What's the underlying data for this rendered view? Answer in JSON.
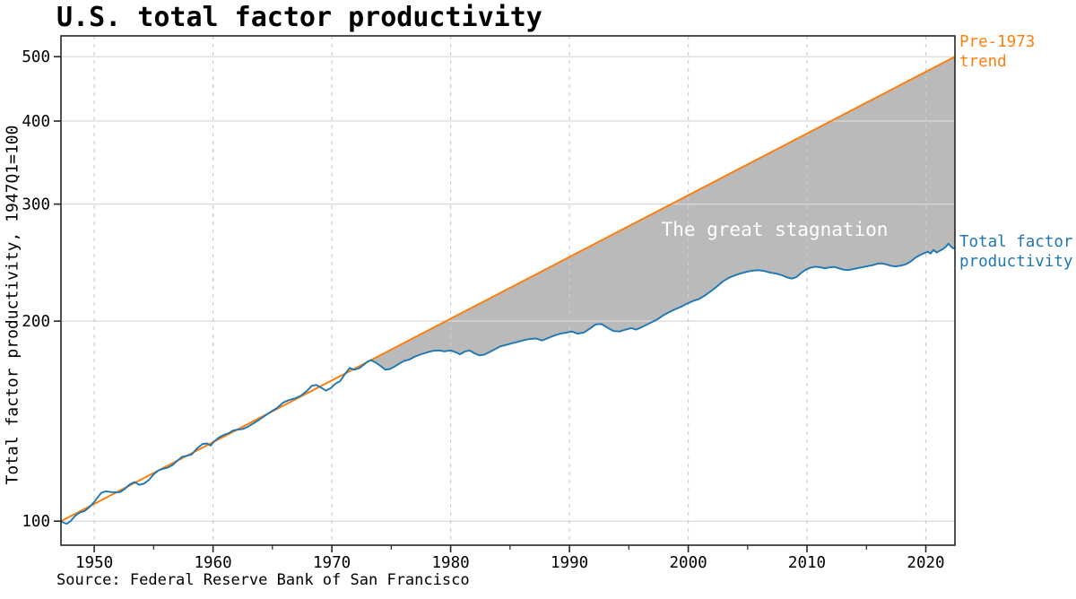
{
  "title": "U.S. total factor productivity",
  "y_axis_label": "Total factor productivity, 1947Q1=100",
  "source_note": "Source: Federal Reserve Bank of San Francisco",
  "annotations": {
    "trend_label_line1": "Pre-1973",
    "trend_label_line2": "trend",
    "tfp_label_line1": "Total factor",
    "tfp_label_line2": "productivity",
    "gap_label": "The great stagnation"
  },
  "colors": {
    "trend": "#ff7f0e",
    "tfp": "#1f77b4",
    "gap_fill": "#bababa",
    "gap_text": "#ffffff",
    "grid_h": "#d9d9d9",
    "grid_v": "#cccccc",
    "axis": "#262626",
    "text": "#000000"
  },
  "chart_data": {
    "type": "line",
    "title": "U.S. total factor productivity",
    "xlabel": "",
    "ylabel": "Total factor productivity, 1947Q1=100",
    "y_scale": "log",
    "grid": true,
    "legend_position": "annotated-right",
    "xlim": [
      1947.2,
      2022.45
    ],
    "ylim": [
      92,
      537.4
    ],
    "x_ticks": [
      1950,
      1960,
      1970,
      1980,
      1990,
      2000,
      2010,
      2020
    ],
    "x_minor_ticks": [
      1955,
      1965,
      1975,
      1985,
      1995,
      2005,
      2015
    ],
    "y_ticks": [
      100,
      200,
      300,
      400,
      500
    ],
    "series": [
      {
        "name": "Pre-1973 trend",
        "color": "#ff7f0e",
        "points": [
          [
            1947.2,
            100
          ],
          [
            2022.45,
            500
          ]
        ]
      },
      {
        "name": "Total factor productivity",
        "color": "#1f77b4",
        "points": [
          [
            1947.2,
            100.0
          ],
          [
            1947.45,
            99.4
          ],
          [
            1947.7,
            99.1
          ],
          [
            1948.0,
            100.0
          ],
          [
            1948.4,
            101.9
          ],
          [
            1948.8,
            103.1
          ],
          [
            1949.2,
            103.6
          ],
          [
            1949.6,
            105.0
          ],
          [
            1950.0,
            106.9
          ],
          [
            1950.3,
            108.6
          ],
          [
            1950.6,
            110.3
          ],
          [
            1951.0,
            110.9
          ],
          [
            1951.4,
            110.6
          ],
          [
            1951.8,
            110.5
          ],
          [
            1952.2,
            110.6
          ],
          [
            1952.6,
            111.9
          ],
          [
            1953.0,
            113.6
          ],
          [
            1953.4,
            114.5
          ],
          [
            1953.8,
            113.4
          ],
          [
            1954.2,
            113.9
          ],
          [
            1954.6,
            115.3
          ],
          [
            1955.0,
            117.6
          ],
          [
            1955.4,
            119.2
          ],
          [
            1955.8,
            119.9
          ],
          [
            1956.2,
            120.4
          ],
          [
            1956.6,
            121.5
          ],
          [
            1957.0,
            123.3
          ],
          [
            1957.4,
            125.0
          ],
          [
            1957.8,
            125.4
          ],
          [
            1958.2,
            126.0
          ],
          [
            1958.7,
            128.9
          ],
          [
            1959.1,
            130.6
          ],
          [
            1959.5,
            130.9
          ],
          [
            1959.8,
            129.9
          ],
          [
            1960.1,
            131.8
          ],
          [
            1960.5,
            133.6
          ],
          [
            1960.9,
            134.8
          ],
          [
            1961.3,
            135.6
          ],
          [
            1961.7,
            136.9
          ],
          [
            1962.1,
            137.3
          ],
          [
            1962.5,
            137.6
          ],
          [
            1962.9,
            138.6
          ],
          [
            1963.4,
            140.3
          ],
          [
            1963.9,
            142.2
          ],
          [
            1964.4,
            144.2
          ],
          [
            1964.9,
            146.2
          ],
          [
            1965.4,
            148.1
          ],
          [
            1965.9,
            150.8
          ],
          [
            1966.4,
            152.2
          ],
          [
            1966.9,
            153.0
          ],
          [
            1967.4,
            154.5
          ],
          [
            1967.9,
            157.0
          ],
          [
            1968.3,
            159.8
          ],
          [
            1968.7,
            160.3
          ],
          [
            1969.1,
            158.8
          ],
          [
            1969.5,
            157.2
          ],
          [
            1969.9,
            158.5
          ],
          [
            1970.3,
            161.0
          ],
          [
            1970.7,
            162.5
          ],
          [
            1971.1,
            166.5
          ],
          [
            1971.5,
            170.0
          ],
          [
            1971.9,
            169.0
          ],
          [
            1972.3,
            169.9
          ],
          [
            1972.7,
            172.0
          ],
          [
            1973.0,
            173.8
          ],
          [
            1973.3,
            174.7
          ],
          [
            1973.7,
            173.2
          ],
          [
            1974.1,
            171.2
          ],
          [
            1974.5,
            169.0
          ],
          [
            1974.9,
            169.4
          ],
          [
            1975.3,
            170.9
          ],
          [
            1975.7,
            172.7
          ],
          [
            1976.1,
            174.3
          ],
          [
            1976.5,
            175.0
          ],
          [
            1977.0,
            176.9
          ],
          [
            1977.5,
            178.3
          ],
          [
            1978.0,
            179.4
          ],
          [
            1978.5,
            180.4
          ],
          [
            1979.0,
            180.7
          ],
          [
            1979.5,
            180.1
          ],
          [
            1980.0,
            180.7
          ],
          [
            1980.4,
            179.6
          ],
          [
            1980.8,
            178.3
          ],
          [
            1981.2,
            180.0
          ],
          [
            1981.6,
            180.7
          ],
          [
            1982.0,
            178.9
          ],
          [
            1982.4,
            177.6
          ],
          [
            1982.8,
            178.0
          ],
          [
            1983.2,
            179.4
          ],
          [
            1983.7,
            181.3
          ],
          [
            1984.2,
            183.3
          ],
          [
            1984.7,
            184.2
          ],
          [
            1985.2,
            185.3
          ],
          [
            1985.7,
            186.2
          ],
          [
            1986.2,
            187.3
          ],
          [
            1986.7,
            188.0
          ],
          [
            1987.2,
            188.3
          ],
          [
            1987.7,
            187.0
          ],
          [
            1988.2,
            188.6
          ],
          [
            1988.7,
            190.1
          ],
          [
            1989.2,
            191.4
          ],
          [
            1989.7,
            192.1
          ],
          [
            1990.2,
            192.9
          ],
          [
            1990.7,
            191.5
          ],
          [
            1991.2,
            192.2
          ],
          [
            1991.7,
            194.7
          ],
          [
            1992.2,
            197.7
          ],
          [
            1992.7,
            198.0
          ],
          [
            1993.2,
            195.5
          ],
          [
            1993.7,
            193.2
          ],
          [
            1994.2,
            192.9
          ],
          [
            1994.7,
            194.1
          ],
          [
            1995.2,
            195.2
          ],
          [
            1995.6,
            194.2
          ],
          [
            1996.0,
            195.5
          ],
          [
            1996.4,
            197.1
          ],
          [
            1996.9,
            199.1
          ],
          [
            1997.4,
            201.2
          ],
          [
            1997.9,
            204.0
          ],
          [
            1998.4,
            206.4
          ],
          [
            1998.9,
            208.4
          ],
          [
            1999.4,
            210.2
          ],
          [
            1999.9,
            212.5
          ],
          [
            2000.4,
            214.4
          ],
          [
            2000.9,
            215.9
          ],
          [
            2001.4,
            218.5
          ],
          [
            2001.9,
            221.7
          ],
          [
            2002.4,
            225.4
          ],
          [
            2002.9,
            229.4
          ],
          [
            2003.4,
            232.3
          ],
          [
            2003.9,
            234.3
          ],
          [
            2004.4,
            235.9
          ],
          [
            2004.9,
            237.2
          ],
          [
            2005.4,
            238.2
          ],
          [
            2005.9,
            238.6
          ],
          [
            2006.4,
            237.9
          ],
          [
            2006.9,
            236.5
          ],
          [
            2007.4,
            235.8
          ],
          [
            2007.9,
            234.4
          ],
          [
            2008.3,
            232.8
          ],
          [
            2008.7,
            231.7
          ],
          [
            2009.1,
            232.9
          ],
          [
            2009.5,
            236.3
          ],
          [
            2009.9,
            239.0
          ],
          [
            2010.3,
            240.7
          ],
          [
            2010.7,
            241.5
          ],
          [
            2011.1,
            241.0
          ],
          [
            2011.5,
            240.2
          ],
          [
            2011.9,
            240.9
          ],
          [
            2012.3,
            241.3
          ],
          [
            2012.7,
            240.1
          ],
          [
            2013.1,
            239.0
          ],
          [
            2013.5,
            238.7
          ],
          [
            2013.9,
            239.5
          ],
          [
            2014.3,
            240.4
          ],
          [
            2014.7,
            241.1
          ],
          [
            2015.1,
            242.0
          ],
          [
            2015.5,
            242.7
          ],
          [
            2015.9,
            243.9
          ],
          [
            2016.3,
            244.3
          ],
          [
            2016.7,
            243.3
          ],
          [
            2017.1,
            242.1
          ],
          [
            2017.5,
            241.7
          ],
          [
            2017.9,
            242.4
          ],
          [
            2018.3,
            243.5
          ],
          [
            2018.7,
            245.7
          ],
          [
            2019.1,
            249.0
          ],
          [
            2019.5,
            251.4
          ],
          [
            2019.9,
            253.3
          ],
          [
            2020.15,
            254.4
          ],
          [
            2020.4,
            252.7
          ],
          [
            2020.65,
            256.0
          ],
          [
            2020.9,
            253.7
          ],
          [
            2021.15,
            255.1
          ],
          [
            2021.4,
            256.5
          ],
          [
            2021.65,
            258.4
          ],
          [
            2021.9,
            261.6
          ],
          [
            2022.1,
            259.1
          ],
          [
            2022.3,
            257.3
          ],
          [
            2022.45,
            257.6
          ]
        ]
      }
    ],
    "fill_between": {
      "upper": "Pre-1973 trend",
      "lower": "Total factor productivity",
      "x_start": 1973.3,
      "fill_color": "#bababa",
      "label": "The great stagnation"
    }
  }
}
